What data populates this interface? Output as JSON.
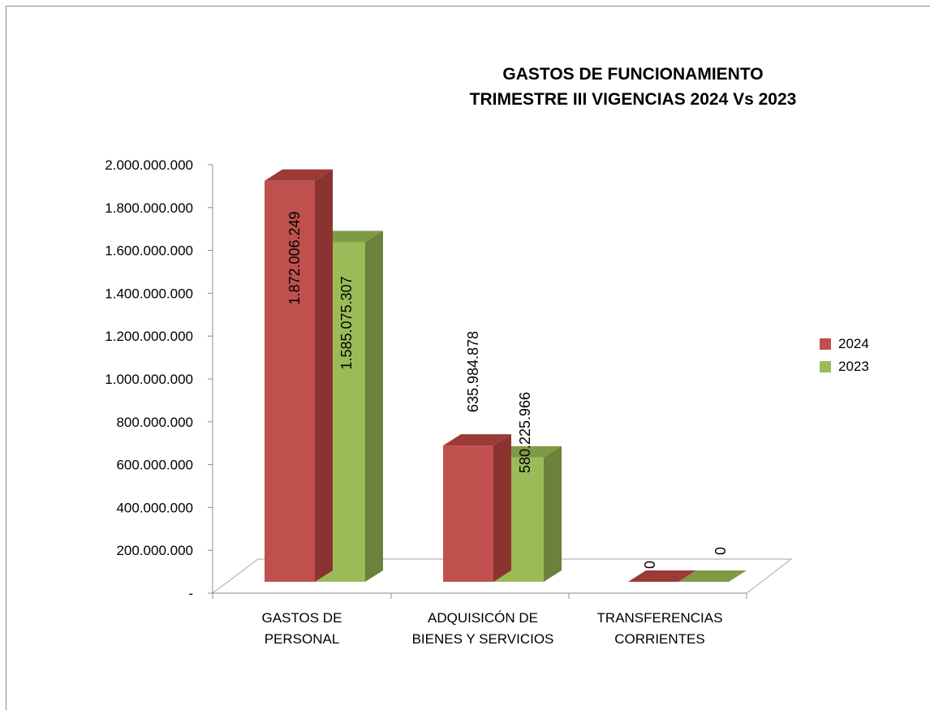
{
  "chart_data": {
    "type": "bar",
    "title_lines": [
      "GASTOS DE FUNCIONAMIENTO",
      "TRIMESTRE III VIGENCIAS  2024 Vs 2023"
    ],
    "categories": [
      [
        "GASTOS DE",
        "PERSONAL"
      ],
      [
        "ADQUISICÓN DE",
        "BIENES Y SERVICIOS"
      ],
      [
        "TRANSFERENCIAS",
        "CORRIENTES"
      ]
    ],
    "series": [
      {
        "name": "2024",
        "values": [
          1872006249,
          635984878,
          0
        ],
        "labels": [
          "1.872.006.249",
          "635.984.878",
          "0"
        ],
        "color": "#c0504d",
        "side_color": "#8b3330",
        "top_color": "#9c3a37"
      },
      {
        "name": "2023",
        "values": [
          1585075307,
          580225966,
          0
        ],
        "labels": [
          "1.585.075.307",
          "580.225.966",
          "0"
        ],
        "color": "#9bbb59",
        "side_color": "#6a8239",
        "top_color": "#7f9a45"
      }
    ],
    "ylim": [
      0,
      2000000000
    ],
    "y_ticks": [
      "-",
      "200.000.000",
      "400.000.000",
      "600.000.000",
      "800.000.000",
      "1.000.000.000",
      "1.200.000.000",
      "1.400.000.000",
      "1.600.000.000",
      "1.800.000.000",
      "2.000.000.000"
    ],
    "legend_position": "right",
    "grid": false,
    "style": "3d-clustered-column"
  }
}
